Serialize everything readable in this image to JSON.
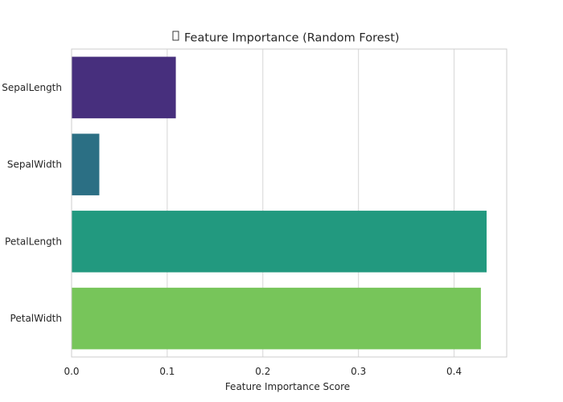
{
  "chart_data": {
    "type": "bar",
    "orientation": "horizontal",
    "title": "Feature Importance (Random Forest)",
    "title_icon": "missing-glyph-icon",
    "xlabel": "Feature Importance Score",
    "ylabel": "",
    "categories": [
      "SepalLength",
      "SepalWidth",
      "PetalLength",
      "PetalWidth"
    ],
    "values": [
      0.109,
      0.029,
      0.434,
      0.428
    ],
    "colors": [
      "#472f7d",
      "#2b6f84",
      "#22997f",
      "#77c55a"
    ],
    "xlim": [
      0,
      0.455
    ],
    "xticks": [
      {
        "value": 0.0,
        "label": "0.0"
      },
      {
        "value": 0.1,
        "label": "0.1"
      },
      {
        "value": 0.2,
        "label": "0.2"
      },
      {
        "value": 0.3,
        "label": "0.3"
      },
      {
        "value": 0.4,
        "label": "0.4"
      }
    ],
    "grid": "x",
    "legend": "none",
    "style": {
      "grid_color": "#d6d6d6",
      "spine_color": "#cccccc",
      "text_color": "#262626"
    }
  }
}
